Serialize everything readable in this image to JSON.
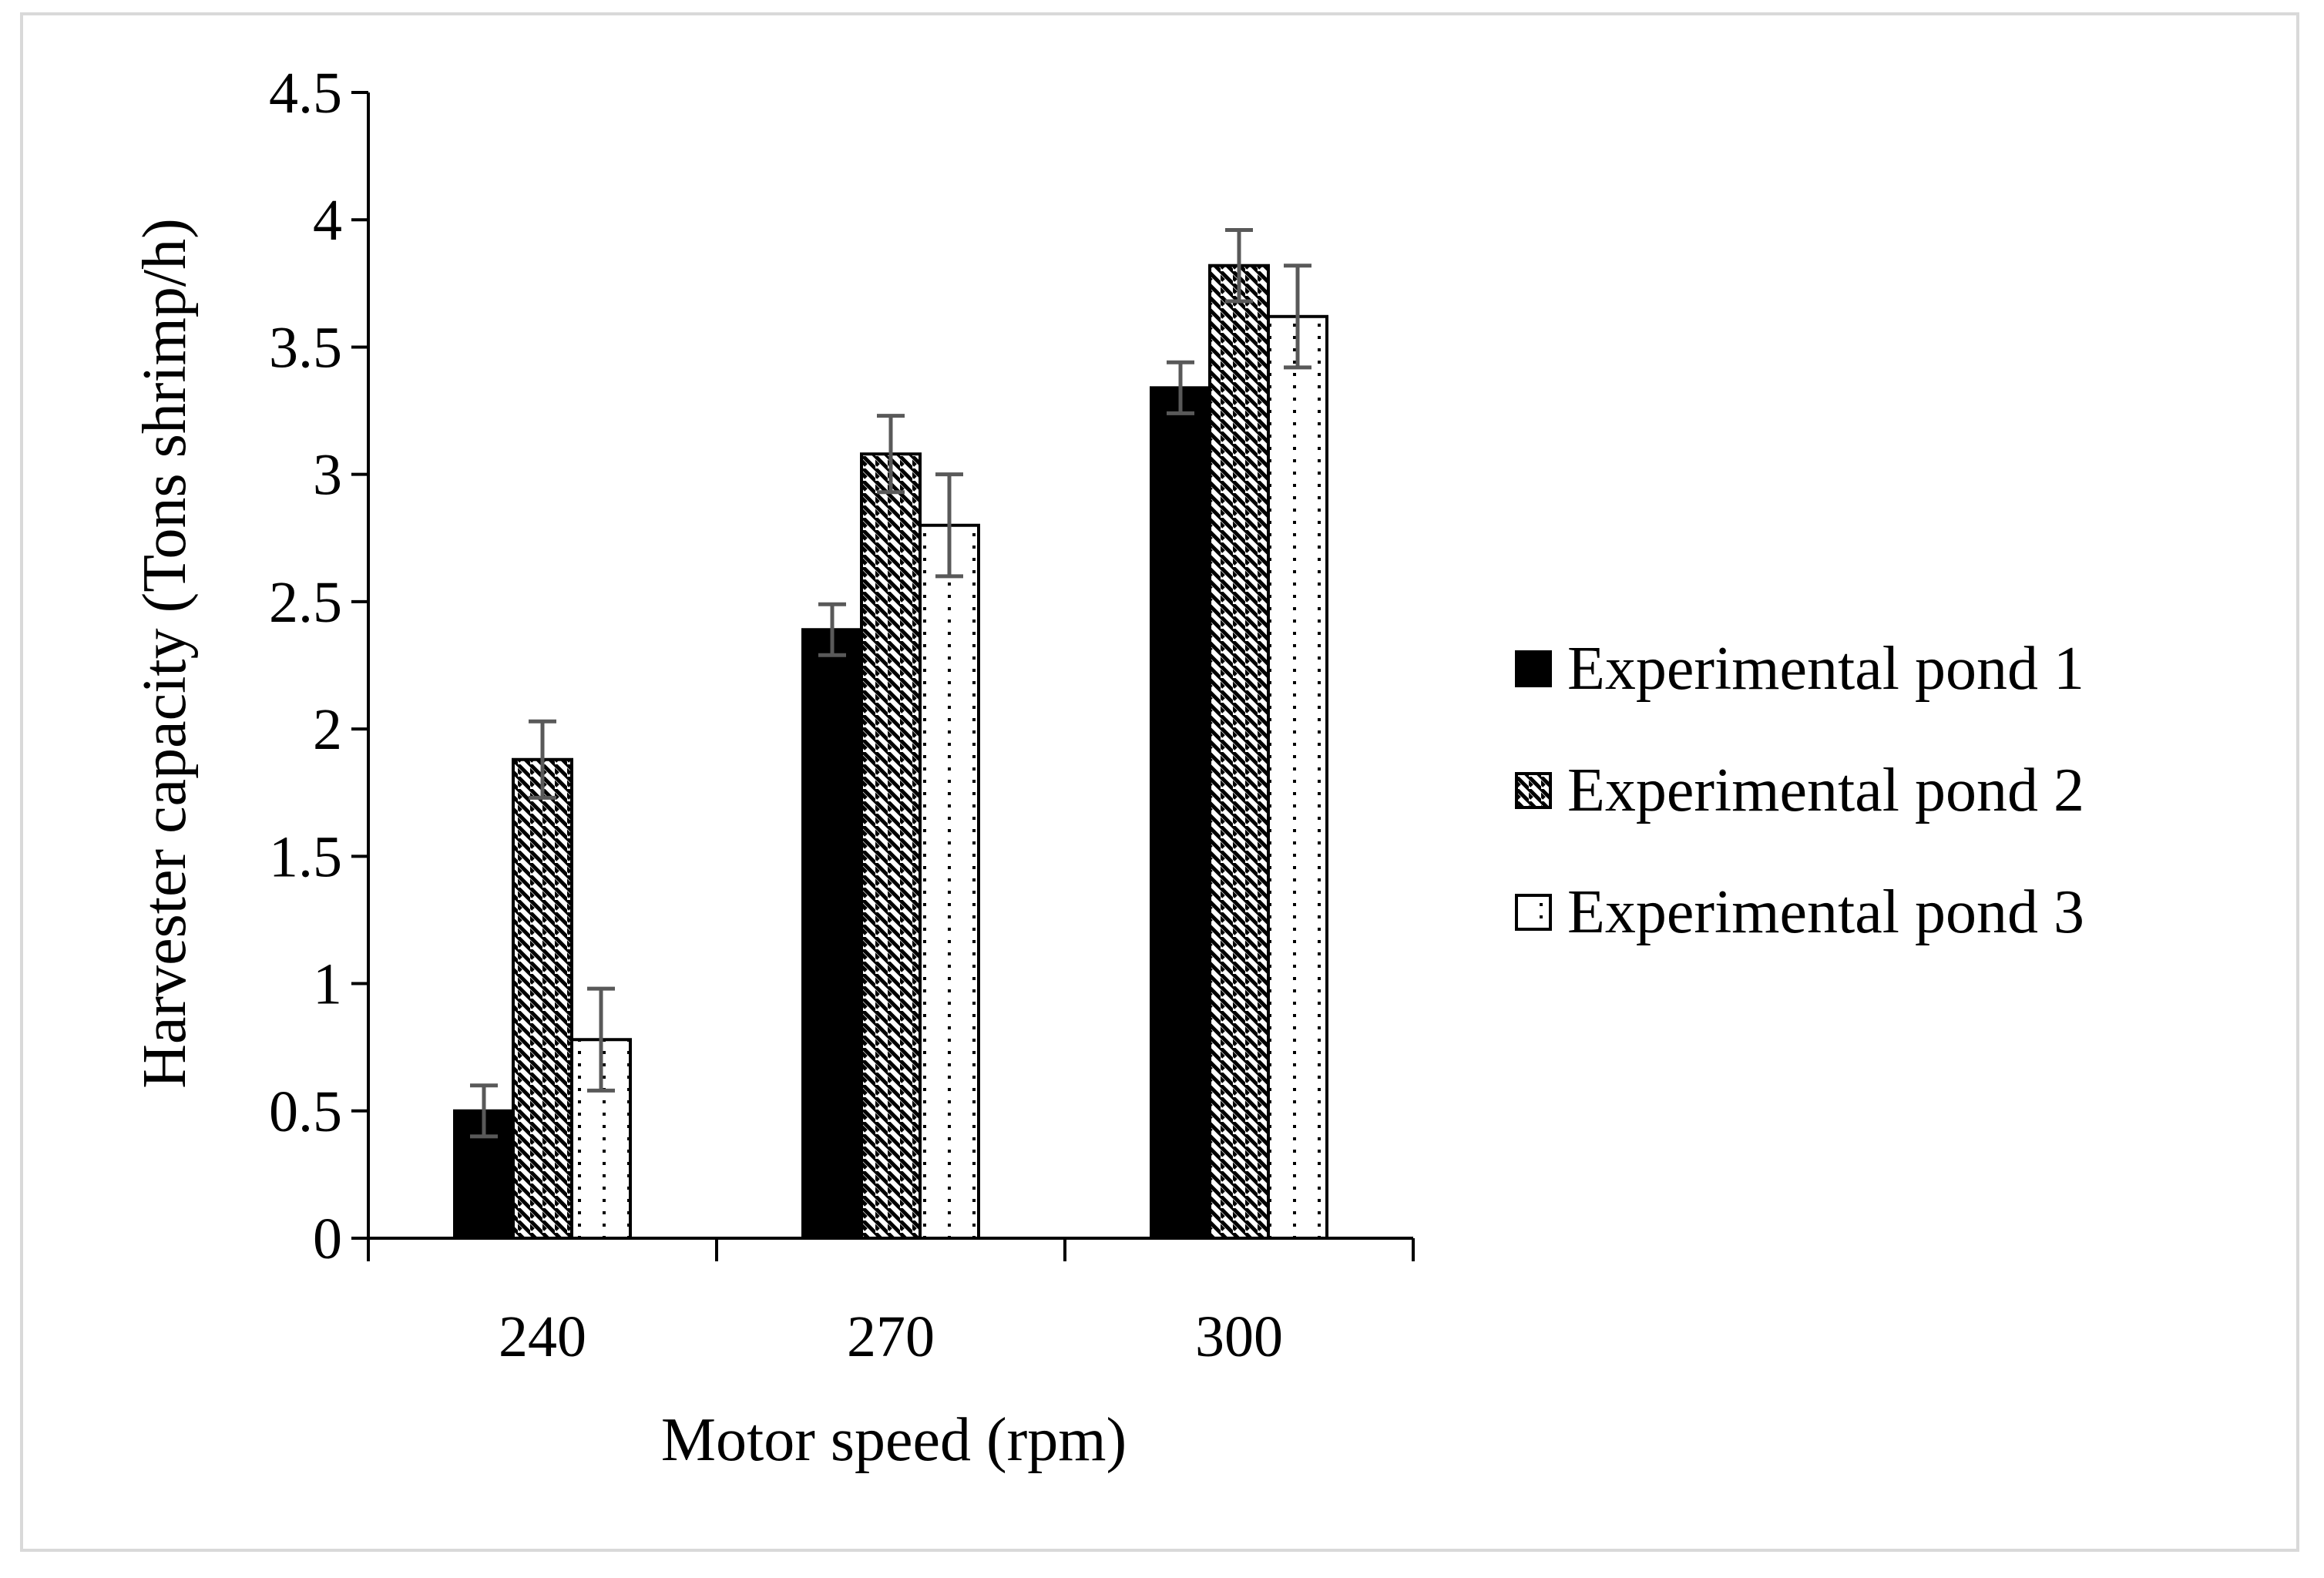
{
  "chart_data": {
    "type": "bar",
    "title": "",
    "xlabel": "Motor speed (rpm)",
    "ylabel": "Harvester capacity (Tons shrimp/h)",
    "ylim": [
      0,
      4.5
    ],
    "yticks": [
      "0",
      "0.5",
      "1",
      "1.5",
      "2",
      "2.5",
      "3",
      "3.5",
      "4",
      "4.5"
    ],
    "categories": [
      "240",
      "270",
      "300"
    ],
    "series": [
      {
        "name": "Experimental pond 1",
        "pattern": "solid",
        "values": [
          0.5,
          2.39,
          3.34
        ],
        "errors": [
          0.1,
          0.1,
          0.1
        ]
      },
      {
        "name": "Experimental pond 2",
        "pattern": "diagonal-hatch",
        "values": [
          1.88,
          3.08,
          3.82
        ],
        "errors": [
          0.15,
          0.15,
          0.14
        ]
      },
      {
        "name": "Experimental pond 3",
        "pattern": "dotted",
        "values": [
          0.78,
          2.8,
          3.62
        ],
        "errors": [
          0.2,
          0.2,
          0.2
        ]
      }
    ],
    "legend_position": "right",
    "grid": false,
    "colors": {
      "bar_fill": "#000000",
      "bar_edge": "#000000",
      "error_bar": "#595959",
      "axis": "#000000",
      "frame": "#d9d9d9"
    }
  }
}
